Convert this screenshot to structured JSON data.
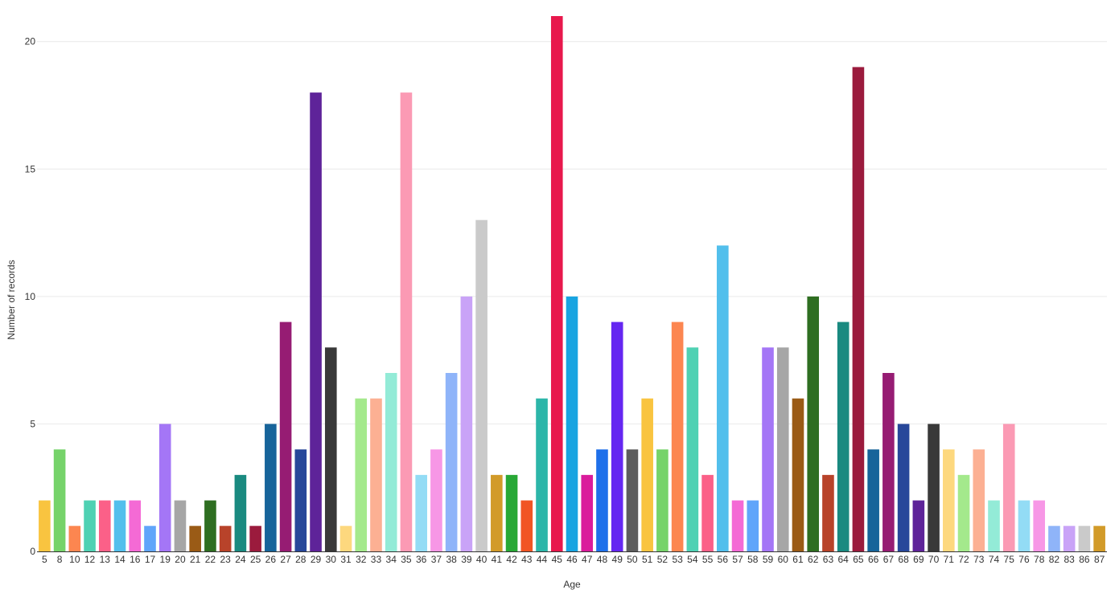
{
  "chart_data": {
    "type": "bar",
    "xlabel": "Age",
    "ylabel": "Number of records",
    "ylim": [
      0,
      21
    ],
    "yticks": [
      0,
      5,
      10,
      15,
      20
    ],
    "grid": true,
    "categories": [
      "5",
      "8",
      "10",
      "12",
      "13",
      "14",
      "16",
      "17",
      "19",
      "20",
      "21",
      "22",
      "23",
      "24",
      "25",
      "26",
      "27",
      "28",
      "29",
      "30",
      "31",
      "32",
      "33",
      "34",
      "35",
      "36",
      "37",
      "38",
      "39",
      "40",
      "41",
      "42",
      "43",
      "44",
      "45",
      "46",
      "47",
      "48",
      "49",
      "50",
      "51",
      "52",
      "53",
      "54",
      "55",
      "56",
      "57",
      "58",
      "59",
      "60",
      "61",
      "62",
      "63",
      "64",
      "65",
      "66",
      "67",
      "68",
      "69",
      "70",
      "71",
      "72",
      "73",
      "74",
      "75",
      "76",
      "78",
      "82",
      "83",
      "86",
      "87"
    ],
    "values": [
      2,
      4,
      1,
      2,
      2,
      2,
      2,
      1,
      5,
      2,
      1,
      2,
      1,
      3,
      1,
      5,
      9,
      4,
      18,
      8,
      1,
      6,
      6,
      7,
      18,
      3,
      4,
      7,
      10,
      13,
      3,
      3,
      2,
      6,
      21,
      10,
      3,
      4,
      9,
      4,
      6,
      4,
      9,
      8,
      3,
      12,
      2,
      2,
      8,
      8,
      6,
      10,
      3,
      9,
      19,
      4,
      7,
      5,
      2,
      5,
      4,
      3,
      4,
      2,
      5,
      2,
      2,
      1,
      1,
      1,
      1
    ],
    "colors": [
      "#f9c440",
      "#76d36a",
      "#fc8650",
      "#4fd1b3",
      "#fb6088",
      "#52bfec",
      "#f46ad5",
      "#60a5fa",
      "#a476f6",
      "#a6a6a6",
      "#9a5b16",
      "#2e6e21",
      "#b8432a",
      "#1a8a80",
      "#9b1b3d",
      "#17649a",
      "#961c73",
      "#27479a",
      "#5e2399",
      "#393939",
      "#fdd87e",
      "#a4e98c",
      "#fcb093",
      "#93ebd7",
      "#fb9ab4",
      "#93dcf5",
      "#f797e6",
      "#8fb4f9",
      "#c9a3f7",
      "#cacaca",
      "#d29b29",
      "#28a836",
      "#f15524",
      "#2cb6a9",
      "#e8184c",
      "#18a4e1",
      "#da1c9c",
      "#1e70ea",
      "#6527f1",
      "#5d5d5d",
      "#f9c440",
      "#76d36a",
      "#fc8650",
      "#4fd1b3",
      "#fb6088",
      "#52bfec",
      "#f46ad5",
      "#60a5fa",
      "#a476f6",
      "#a6a6a6",
      "#9a5b16",
      "#2e6e21",
      "#b8432a",
      "#1a8a80",
      "#9b1b3d",
      "#17649a",
      "#961c73",
      "#27479a",
      "#5e2399",
      "#393939",
      "#fdd87e",
      "#a4e98c",
      "#fcb093",
      "#93ebd7",
      "#fb9ab4",
      "#93dcf5",
      "#f797e6",
      "#8fb4f9",
      "#c9a3f7",
      "#cacaca",
      "#d29b29"
    ]
  }
}
